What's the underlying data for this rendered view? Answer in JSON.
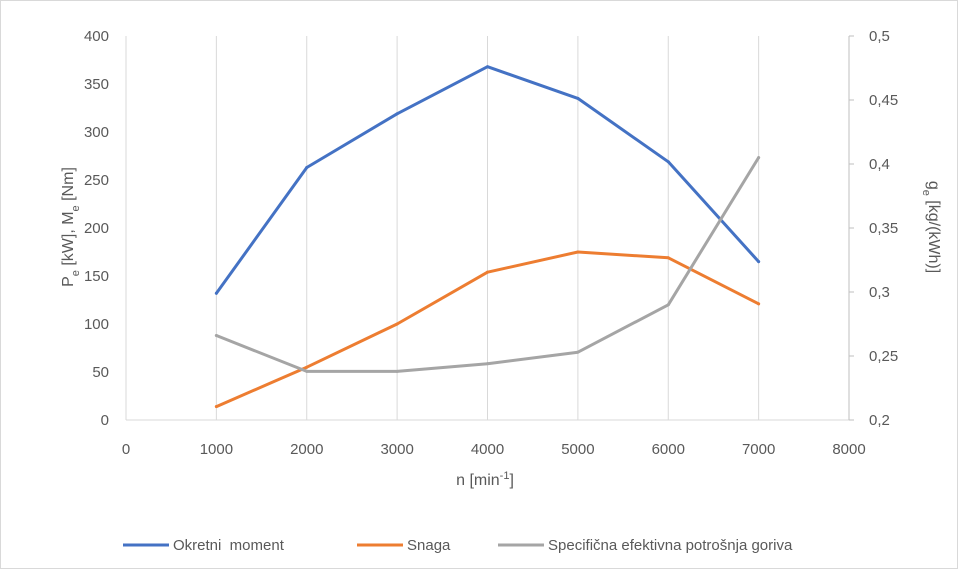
{
  "chart_data": {
    "type": "line",
    "x": [
      1000,
      2000,
      3000,
      4000,
      5000,
      6000,
      7000
    ],
    "xlim": [
      0,
      8000
    ],
    "x_ticks": [
      "0",
      "1000",
      "2000",
      "3000",
      "4000",
      "5000",
      "6000",
      "7000",
      "8000"
    ],
    "xlabel": {
      "main": "n [min",
      "sup": "-1",
      "end": "]"
    },
    "ylim": [
      0,
      400
    ],
    "y_ticks": [
      "0",
      "50",
      "100",
      "150",
      "200",
      "250",
      "300",
      "350",
      "400"
    ],
    "ylabel": {
      "p": "P",
      "p_sub": "e",
      "mid": " [kW], M",
      "m_sub": "e",
      "end": " [Nm]"
    },
    "y2lim": [
      0.2,
      0.5
    ],
    "y2_ticks": [
      "0,2",
      "0,25",
      "0,3",
      "0,35",
      "0,4",
      "0,45",
      "0,5"
    ],
    "y2label": {
      "g": "g",
      "g_sub": "e",
      "end": " [kg/(kWh)]"
    },
    "grid": "vertical",
    "legend_position": "bottom",
    "series": [
      {
        "name": "Okretni  moment",
        "axis": "left",
        "color": "#4472C4",
        "values": [
          132,
          263,
          319,
          368,
          335,
          269,
          165
        ]
      },
      {
        "name": "Snaga",
        "axis": "left",
        "color": "#ED7D31",
        "values": [
          14,
          55,
          100,
          154,
          175,
          169,
          121
        ]
      },
      {
        "name": "Specifična efektivna potrošnja goriva",
        "axis": "right",
        "color": "#A5A5A5",
        "values": [
          0.266,
          0.238,
          0.238,
          0.244,
          0.253,
          0.29,
          0.405
        ]
      }
    ]
  }
}
